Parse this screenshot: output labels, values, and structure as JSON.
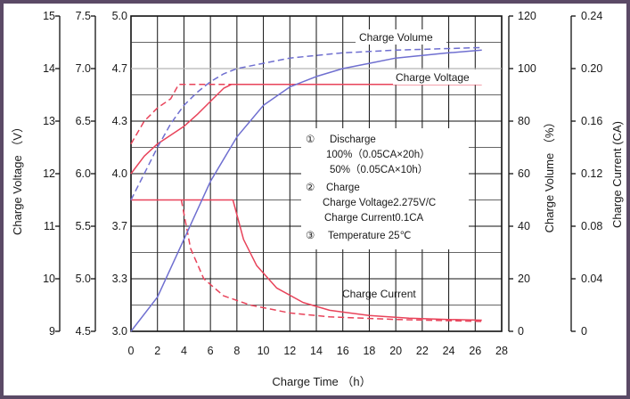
{
  "chart_data": {
    "type": "line",
    "xlabel": "Charge Time （h）",
    "x_ticks": [
      "0",
      "2",
      "4",
      "6",
      "8",
      "10",
      "12",
      "14",
      "16",
      "18",
      "20",
      "22",
      "24",
      "26",
      "28"
    ],
    "xlim": [
      0,
      28
    ],
    "grid": true,
    "axes": {
      "charge_voltage_v": {
        "label": "Charge Voltage （V）",
        "ticks_6v": [
          "4.5",
          "5.0",
          "5.5",
          "6.0",
          "6.5",
          "7.0",
          "7.5"
        ],
        "ticks_12v": [
          "9",
          "10",
          "11",
          "12",
          "13",
          "14",
          "15"
        ],
        "ticks_cell": [
          "3.0",
          "3.3",
          "3.7",
          "4.0",
          "4.3",
          "4.7",
          "5.0"
        ]
      },
      "charge_volume_pct": {
        "label": "Charge Volume （%）",
        "ticks": [
          "0",
          "20",
          "40",
          "60",
          "80",
          "100",
          "120"
        ],
        "ylim": [
          0,
          120
        ]
      },
      "charge_current_ca": {
        "label": "Charge Current (CA)",
        "ticks": [
          "0",
          "0.04",
          "0.08",
          "0.12",
          "0.16",
          "0.20",
          "0.24"
        ],
        "ylim": [
          0,
          0.24
        ]
      }
    },
    "series_labels": {
      "volume": "Charge Volume",
      "voltage": "Charge Voltage",
      "current": "Charge Current"
    },
    "colors": {
      "voltage": "#e8435a",
      "current": "#e8435a",
      "volume": "#6f6fd0"
    },
    "conditions": {
      "discharge_marker": "①",
      "discharge_title": "Discharge",
      "discharge_line1": "100%（0.05CA×20h）",
      "discharge_line2": "50%（0.05CA×10h）",
      "charge_marker": "②",
      "charge_title": "Charge",
      "charge_line1": "Charge Voltage2.275V/C",
      "charge_line2": "Charge Current0.1CA",
      "temperature_marker": "③",
      "temperature_line": "Temperature 25℃"
    },
    "series": [
      {
        "key": "voltage_100",
        "color": "#e8435a",
        "dashed": false,
        "axis": "cell_voltage",
        "points": [
          [
            0,
            4.0
          ],
          [
            1,
            4.1
          ],
          [
            2,
            4.17
          ],
          [
            3,
            4.22
          ],
          [
            4,
            4.27
          ],
          [
            5,
            4.35
          ],
          [
            6,
            4.45
          ],
          [
            7,
            4.55
          ],
          [
            7.6,
            4.58
          ],
          [
            26.5,
            4.58
          ]
        ]
      },
      {
        "key": "voltage_50",
        "color": "#e8435a",
        "dashed": true,
        "axis": "cell_voltage",
        "points": [
          [
            0,
            4.17
          ],
          [
            1,
            4.3
          ],
          [
            2,
            4.4
          ],
          [
            3,
            4.47
          ],
          [
            3.6,
            4.58
          ],
          [
            26.5,
            4.58
          ]
        ]
      },
      {
        "key": "current_100",
        "color": "#e8435a",
        "dashed": false,
        "axis": "current",
        "points": [
          [
            0,
            0.1
          ],
          [
            7.7,
            0.1
          ],
          [
            8.5,
            0.07
          ],
          [
            9.5,
            0.05
          ],
          [
            11,
            0.033
          ],
          [
            13,
            0.022
          ],
          [
            15,
            0.016
          ],
          [
            18,
            0.012
          ],
          [
            21,
            0.01
          ],
          [
            24,
            0.009
          ],
          [
            26.5,
            0.0085
          ]
        ]
      },
      {
        "key": "current_50",
        "color": "#e8435a",
        "dashed": true,
        "axis": "current",
        "points": [
          [
            3.8,
            0.1
          ],
          [
            4.5,
            0.063
          ],
          [
            5.5,
            0.04
          ],
          [
            7,
            0.027
          ],
          [
            9,
            0.02
          ],
          [
            12,
            0.014
          ],
          [
            15,
            0.011
          ],
          [
            20,
            0.009
          ],
          [
            26.5,
            0.0075
          ]
        ]
      },
      {
        "key": "volume_100",
        "color": "#6f6fd0",
        "dashed": false,
        "axis": "volume",
        "points": [
          [
            0,
            0
          ],
          [
            2,
            13
          ],
          [
            4,
            35
          ],
          [
            6,
            57
          ],
          [
            8,
            74
          ],
          [
            10,
            86
          ],
          [
            12,
            93
          ],
          [
            14,
            97
          ],
          [
            16,
            100
          ],
          [
            18,
            102
          ],
          [
            20,
            104
          ],
          [
            22,
            105
          ],
          [
            24,
            106
          ],
          [
            26.5,
            107
          ]
        ]
      },
      {
        "key": "volume_50",
        "color": "#6f6fd0",
        "dashed": true,
        "axis": "volume",
        "points": [
          [
            0,
            50
          ],
          [
            1,
            60
          ],
          [
            2,
            70
          ],
          [
            3,
            79
          ],
          [
            4,
            86
          ],
          [
            5,
            91
          ],
          [
            6,
            95
          ],
          [
            7,
            98
          ],
          [
            8,
            100
          ],
          [
            10,
            102
          ],
          [
            12,
            104
          ],
          [
            16,
            106
          ],
          [
            20,
            107
          ],
          [
            26.5,
            108
          ]
        ]
      }
    ]
  }
}
